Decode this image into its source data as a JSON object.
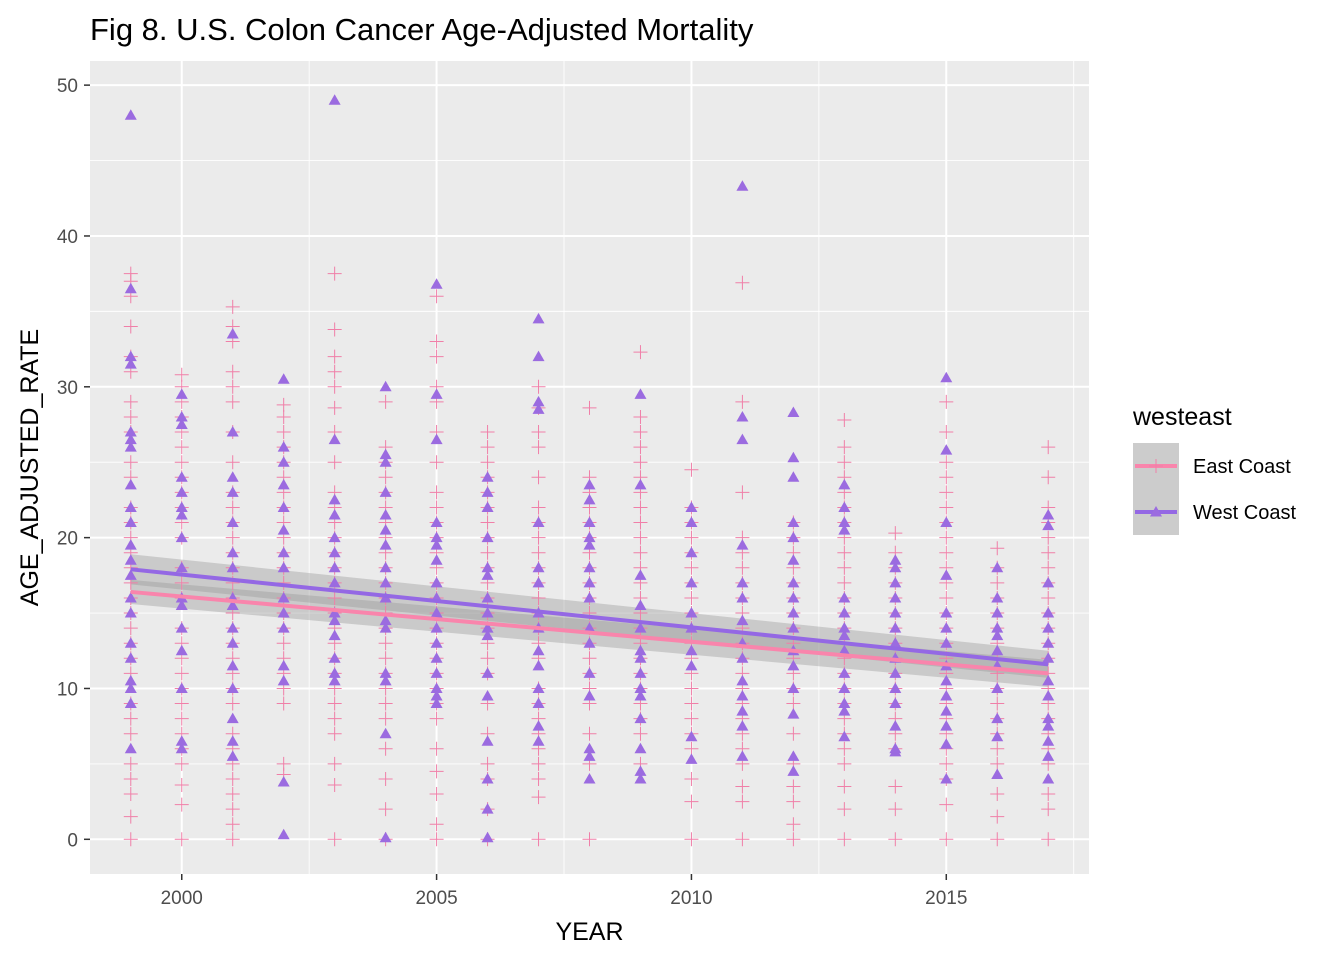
{
  "chart_data": {
    "type": "scatter",
    "title": "Fig 8. U.S. Colon Cancer Age-Adjusted Mortality",
    "xlabel": "YEAR",
    "ylabel": "AGE_ADJUSTED_RATE",
    "xlim": [
      1998.2,
      2017.8
    ],
    "ylim": [
      -2.3,
      51.6
    ],
    "x_ticks": [
      2000,
      2005,
      2010,
      2015
    ],
    "y_ticks": [
      0,
      10,
      20,
      30,
      40,
      50
    ],
    "grid": true,
    "legend": {
      "title": "westeast",
      "position": "right"
    },
    "series": [
      {
        "name": "East Coast",
        "marker": "plus",
        "color": "#f07fa8",
        "line_color": "#f985ac",
        "trend": {
          "x": [
            1999,
            2017
          ],
          "y": [
            16.4,
            11.0
          ],
          "band": [
            0.8,
            0.9
          ]
        },
        "points": {
          "1999": [
            0,
            1.5,
            3,
            4,
            5,
            7,
            8,
            9,
            11,
            12,
            13,
            14,
            15,
            16,
            17,
            18,
            19,
            20,
            21,
            22,
            24,
            25,
            27,
            28,
            29,
            31,
            32,
            34,
            36,
            37,
            37.5
          ],
          "2000": [
            0,
            2.3,
            3.6,
            5,
            6,
            7,
            8,
            9,
            10,
            11,
            12,
            13,
            14,
            16,
            17,
            18,
            20,
            21,
            22,
            23,
            24,
            25,
            26,
            27,
            28,
            29,
            30,
            30.8
          ],
          "2001": [
            0,
            1,
            2,
            3,
            4,
            5,
            6,
            7,
            9,
            10,
            11,
            12,
            13,
            14,
            15,
            16,
            17,
            18,
            19,
            20,
            21,
            22,
            23,
            25,
            27,
            29,
            30,
            31,
            33,
            34,
            35.3
          ],
          "2002": [
            4.3,
            5,
            9,
            10,
            11,
            12,
            13,
            14,
            15,
            16,
            17,
            18,
            19,
            20,
            21,
            22,
            23,
            24,
            25,
            26,
            27,
            28,
            28.8
          ],
          "2003": [
            0,
            3.6,
            5,
            7,
            8,
            9,
            10,
            11,
            12,
            13,
            14,
            15,
            16,
            17,
            18,
            19,
            20,
            21,
            22,
            23,
            25,
            27,
            28.6,
            30,
            31,
            32,
            33.8,
            37.5
          ],
          "2004": [
            0,
            2,
            4,
            6,
            8,
            9,
            10,
            11,
            12,
            13,
            14,
            15,
            16,
            17,
            18,
            19,
            20,
            21,
            22,
            23,
            24,
            25,
            26,
            29
          ],
          "2005": [
            0,
            1,
            3,
            4.5,
            6,
            8,
            9,
            10,
            11,
            12,
            13,
            14,
            15,
            16,
            17,
            18,
            19,
            20,
            21,
            22,
            23,
            25,
            27,
            29,
            30,
            32,
            33,
            36
          ],
          "2006": [
            0,
            2,
            4,
            5,
            7,
            9,
            11,
            12,
            13,
            14,
            15,
            16,
            17,
            18,
            19,
            20,
            21,
            22,
            23,
            24,
            25,
            26,
            27
          ],
          "2007": [
            0,
            2.8,
            4,
            5,
            6,
            7,
            8,
            9,
            10,
            12,
            13,
            14,
            15,
            16,
            17,
            18,
            19,
            20,
            21,
            22,
            24,
            26,
            27,
            28.6,
            30
          ],
          "2008": [
            0,
            5,
            7,
            9,
            10,
            11,
            12,
            13,
            14,
            15,
            16,
            17,
            18,
            19,
            20,
            21,
            22,
            23,
            24,
            28.6
          ],
          "2009": [
            5,
            7,
            8,
            9,
            10,
            11,
            12,
            13,
            14,
            15,
            16,
            17,
            18,
            19,
            20,
            21,
            22,
            23,
            24,
            25,
            26,
            27,
            28,
            32.3
          ],
          "2010": [
            0,
            2.5,
            4,
            6,
            7,
            8,
            9,
            10,
            11,
            12,
            13,
            14,
            15,
            16,
            17,
            18,
            19,
            20,
            21,
            22,
            24.5
          ],
          "2011": [
            0,
            2.5,
            3.5,
            5,
            6,
            7,
            8,
            9,
            10,
            11,
            12,
            13,
            14,
            15,
            16,
            17,
            18,
            19,
            20,
            23,
            29,
            36.9
          ],
          "2012": [
            0,
            1,
            2.5,
            3.5,
            5,
            7,
            9,
            10,
            11,
            12,
            13,
            14,
            15,
            16,
            17,
            18,
            19,
            20,
            21
          ],
          "2013": [
            0,
            2,
            3.5,
            5,
            6,
            7,
            8,
            9,
            10,
            11,
            12,
            13,
            14,
            15,
            16,
            17,
            18,
            19,
            20,
            21,
            22,
            23,
            24,
            25,
            26,
            27.8
          ],
          "2014": [
            0,
            2,
            3.5,
            6,
            7,
            8,
            9,
            10,
            11,
            12,
            13,
            14,
            15,
            16,
            17,
            18,
            19,
            20.3
          ],
          "2015": [
            0,
            2.3,
            4,
            5,
            6,
            7,
            8,
            9,
            10,
            11,
            12,
            13,
            14,
            15,
            16,
            17,
            18,
            19,
            20,
            21,
            22,
            23,
            24,
            25,
            27,
            29
          ],
          "2016": [
            0,
            1.5,
            3,
            5,
            6,
            7,
            8,
            9,
            10,
            11,
            12,
            13,
            14,
            15,
            16,
            17,
            18,
            19.3
          ],
          "2017": [
            0,
            2,
            3,
            5,
            6,
            7,
            8,
            9,
            10,
            11,
            12,
            13,
            14,
            15,
            16,
            17,
            18,
            19,
            20,
            21,
            22,
            24,
            26
          ]
        }
      },
      {
        "name": "West Coast",
        "marker": "triangle",
        "color": "#9b6be0",
        "line_color": "#9468e4",
        "trend": {
          "x": [
            1999,
            2017
          ],
          "y": [
            17.9,
            11.6
          ],
          "band": [
            1.0,
            0.9
          ]
        },
        "points": {
          "1999": [
            6,
            9,
            10,
            10.5,
            12,
            13,
            15,
            16,
            17.5,
            18.5,
            19.5,
            21,
            22,
            23.5,
            26,
            26.5,
            27,
            31.5,
            32,
            36.5,
            48
          ],
          "2000": [
            6,
            6.5,
            10,
            12.5,
            14,
            15.5,
            16,
            18,
            20,
            21.5,
            22,
            23,
            24,
            27.5,
            28,
            29.5
          ],
          "2001": [
            5.5,
            6.5,
            8,
            10,
            11.5,
            13,
            14,
            15.5,
            16,
            18,
            19,
            21,
            23,
            24,
            27,
            33.5
          ],
          "2002": [
            0.3,
            3.8,
            10.5,
            11.5,
            14,
            15,
            16,
            18,
            19,
            20.5,
            22,
            23.5,
            25,
            26,
            30.5
          ],
          "2003": [
            10.5,
            11,
            12,
            13.5,
            14.5,
            15,
            17,
            18,
            19,
            20,
            21.5,
            22.5,
            26.5,
            49
          ],
          "2004": [
            0.1,
            7,
            10.5,
            11,
            14,
            14.5,
            16,
            17,
            18,
            19.5,
            20.5,
            21.5,
            23,
            25,
            25.5,
            30
          ],
          "2005": [
            9,
            9.5,
            10,
            11,
            12,
            13,
            14,
            15,
            16,
            17,
            18.5,
            19.5,
            20,
            21,
            26.5,
            29.5,
            36.8
          ],
          "2006": [
            0.1,
            2,
            4,
            6.5,
            9.5,
            11,
            13.5,
            14,
            15,
            16,
            17.5,
            18,
            20,
            22,
            23,
            24
          ],
          "2007": [
            6.5,
            7.5,
            9,
            10,
            11.5,
            12.5,
            14,
            15,
            17,
            18,
            21,
            28.5,
            29,
            32,
            34.5
          ],
          "2008": [
            4,
            5.5,
            6,
            9.5,
            11,
            13,
            14,
            16,
            17,
            18,
            19.5,
            20,
            21,
            22.5,
            23.5
          ],
          "2009": [
            4,
            4.5,
            6,
            8,
            9.5,
            10,
            11,
            12,
            12.5,
            14,
            15.5,
            17.5,
            23.5,
            29.5
          ],
          "2010": [
            5.3,
            6.8,
            11.5,
            12.5,
            14,
            15,
            17,
            19,
            21,
            22
          ],
          "2011": [
            5.5,
            7.5,
            8.5,
            9.5,
            10.5,
            12,
            13,
            14.5,
            16,
            17,
            19.5,
            26.5,
            28,
            43.3
          ],
          "2012": [
            4.5,
            5.5,
            8.3,
            10,
            11.5,
            12.5,
            14,
            15,
            16,
            17,
            18.5,
            20,
            21,
            24,
            25.3,
            28.3
          ],
          "2013": [
            6.8,
            8.5,
            9,
            10,
            11,
            12.5,
            13.5,
            14,
            15,
            16,
            20.5,
            21,
            22,
            23.5
          ],
          "2014": [
            5.8,
            6,
            7.5,
            9,
            10,
            11,
            12,
            13,
            14,
            15,
            16,
            17,
            18,
            18.5
          ],
          "2015": [
            4,
            6.3,
            7.5,
            8.5,
            9.5,
            10.5,
            11.5,
            13,
            14,
            15,
            17.5,
            21,
            25.8,
            30.6
          ],
          "2016": [
            4.3,
            6.8,
            8,
            10,
            11.5,
            12.5,
            13.5,
            14,
            15,
            16,
            18
          ],
          "2017": [
            4,
            5.5,
            6.5,
            7.5,
            8,
            9.5,
            10.5,
            12,
            13,
            14,
            15,
            17,
            20.8,
            21.5
          ]
        }
      }
    ]
  }
}
